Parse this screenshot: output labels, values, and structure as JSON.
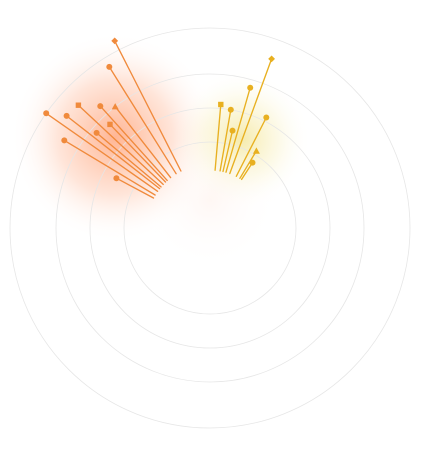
{
  "chart_data": {
    "type": "scatter",
    "title": "",
    "subtitle": "",
    "radial_rings": 4,
    "grid": true,
    "legend": "none",
    "series": [
      {
        "color": "#f08a3c",
        "points": [
          {
            "angle_deg": 305,
            "stem_r": 0.32,
            "r": 1.0,
            "marker": "circle"
          },
          {
            "angle_deg": 308,
            "stem_r": 0.32,
            "r": 0.91,
            "marker": "circle"
          },
          {
            "angle_deg": 313,
            "stem_r": 0.32,
            "r": 0.9,
            "marker": "square"
          },
          {
            "angle_deg": 318,
            "stem_r": 0.32,
            "r": 0.82,
            "marker": "circle"
          },
          {
            "angle_deg": 322,
            "stem_r": 0.32,
            "r": 0.77,
            "marker": "triangle"
          },
          {
            "angle_deg": 328,
            "stem_r": 0.32,
            "r": 0.95,
            "marker": "circle"
          },
          {
            "angle_deg": 333,
            "stem_r": 0.32,
            "r": 1.05,
            "marker": "diamond"
          },
          {
            "angle_deg": 301,
            "stem_r": 0.32,
            "r": 0.85,
            "marker": "circle"
          },
          {
            "angle_deg": 310,
            "stem_r": 0.32,
            "r": 0.74,
            "marker": "circle"
          },
          {
            "angle_deg": 316,
            "stem_r": 0.32,
            "r": 0.72,
            "marker": "square"
          },
          {
            "angle_deg": 298,
            "stem_r": 0.32,
            "r": 0.53,
            "marker": "circle"
          }
        ]
      },
      {
        "color": "#e8b020",
        "points": [
          {
            "angle_deg": 20,
            "stem_r": 0.29,
            "r": 0.9,
            "marker": "diamond"
          },
          {
            "angle_deg": 16,
            "stem_r": 0.29,
            "r": 0.73,
            "marker": "circle"
          },
          {
            "angle_deg": 27,
            "stem_r": 0.29,
            "r": 0.62,
            "marker": "circle"
          },
          {
            "angle_deg": 10,
            "stem_r": 0.29,
            "r": 0.6,
            "marker": "circle"
          },
          {
            "angle_deg": 5,
            "stem_r": 0.29,
            "r": 0.62,
            "marker": "square"
          },
          {
            "angle_deg": 13,
            "stem_r": 0.29,
            "r": 0.5,
            "marker": "circle"
          },
          {
            "angle_deg": 31,
            "stem_r": 0.29,
            "r": 0.45,
            "marker": "triangle"
          },
          {
            "angle_deg": 33,
            "stem_r": 0.29,
            "r": 0.39,
            "marker": "circle"
          }
        ]
      }
    ]
  }
}
